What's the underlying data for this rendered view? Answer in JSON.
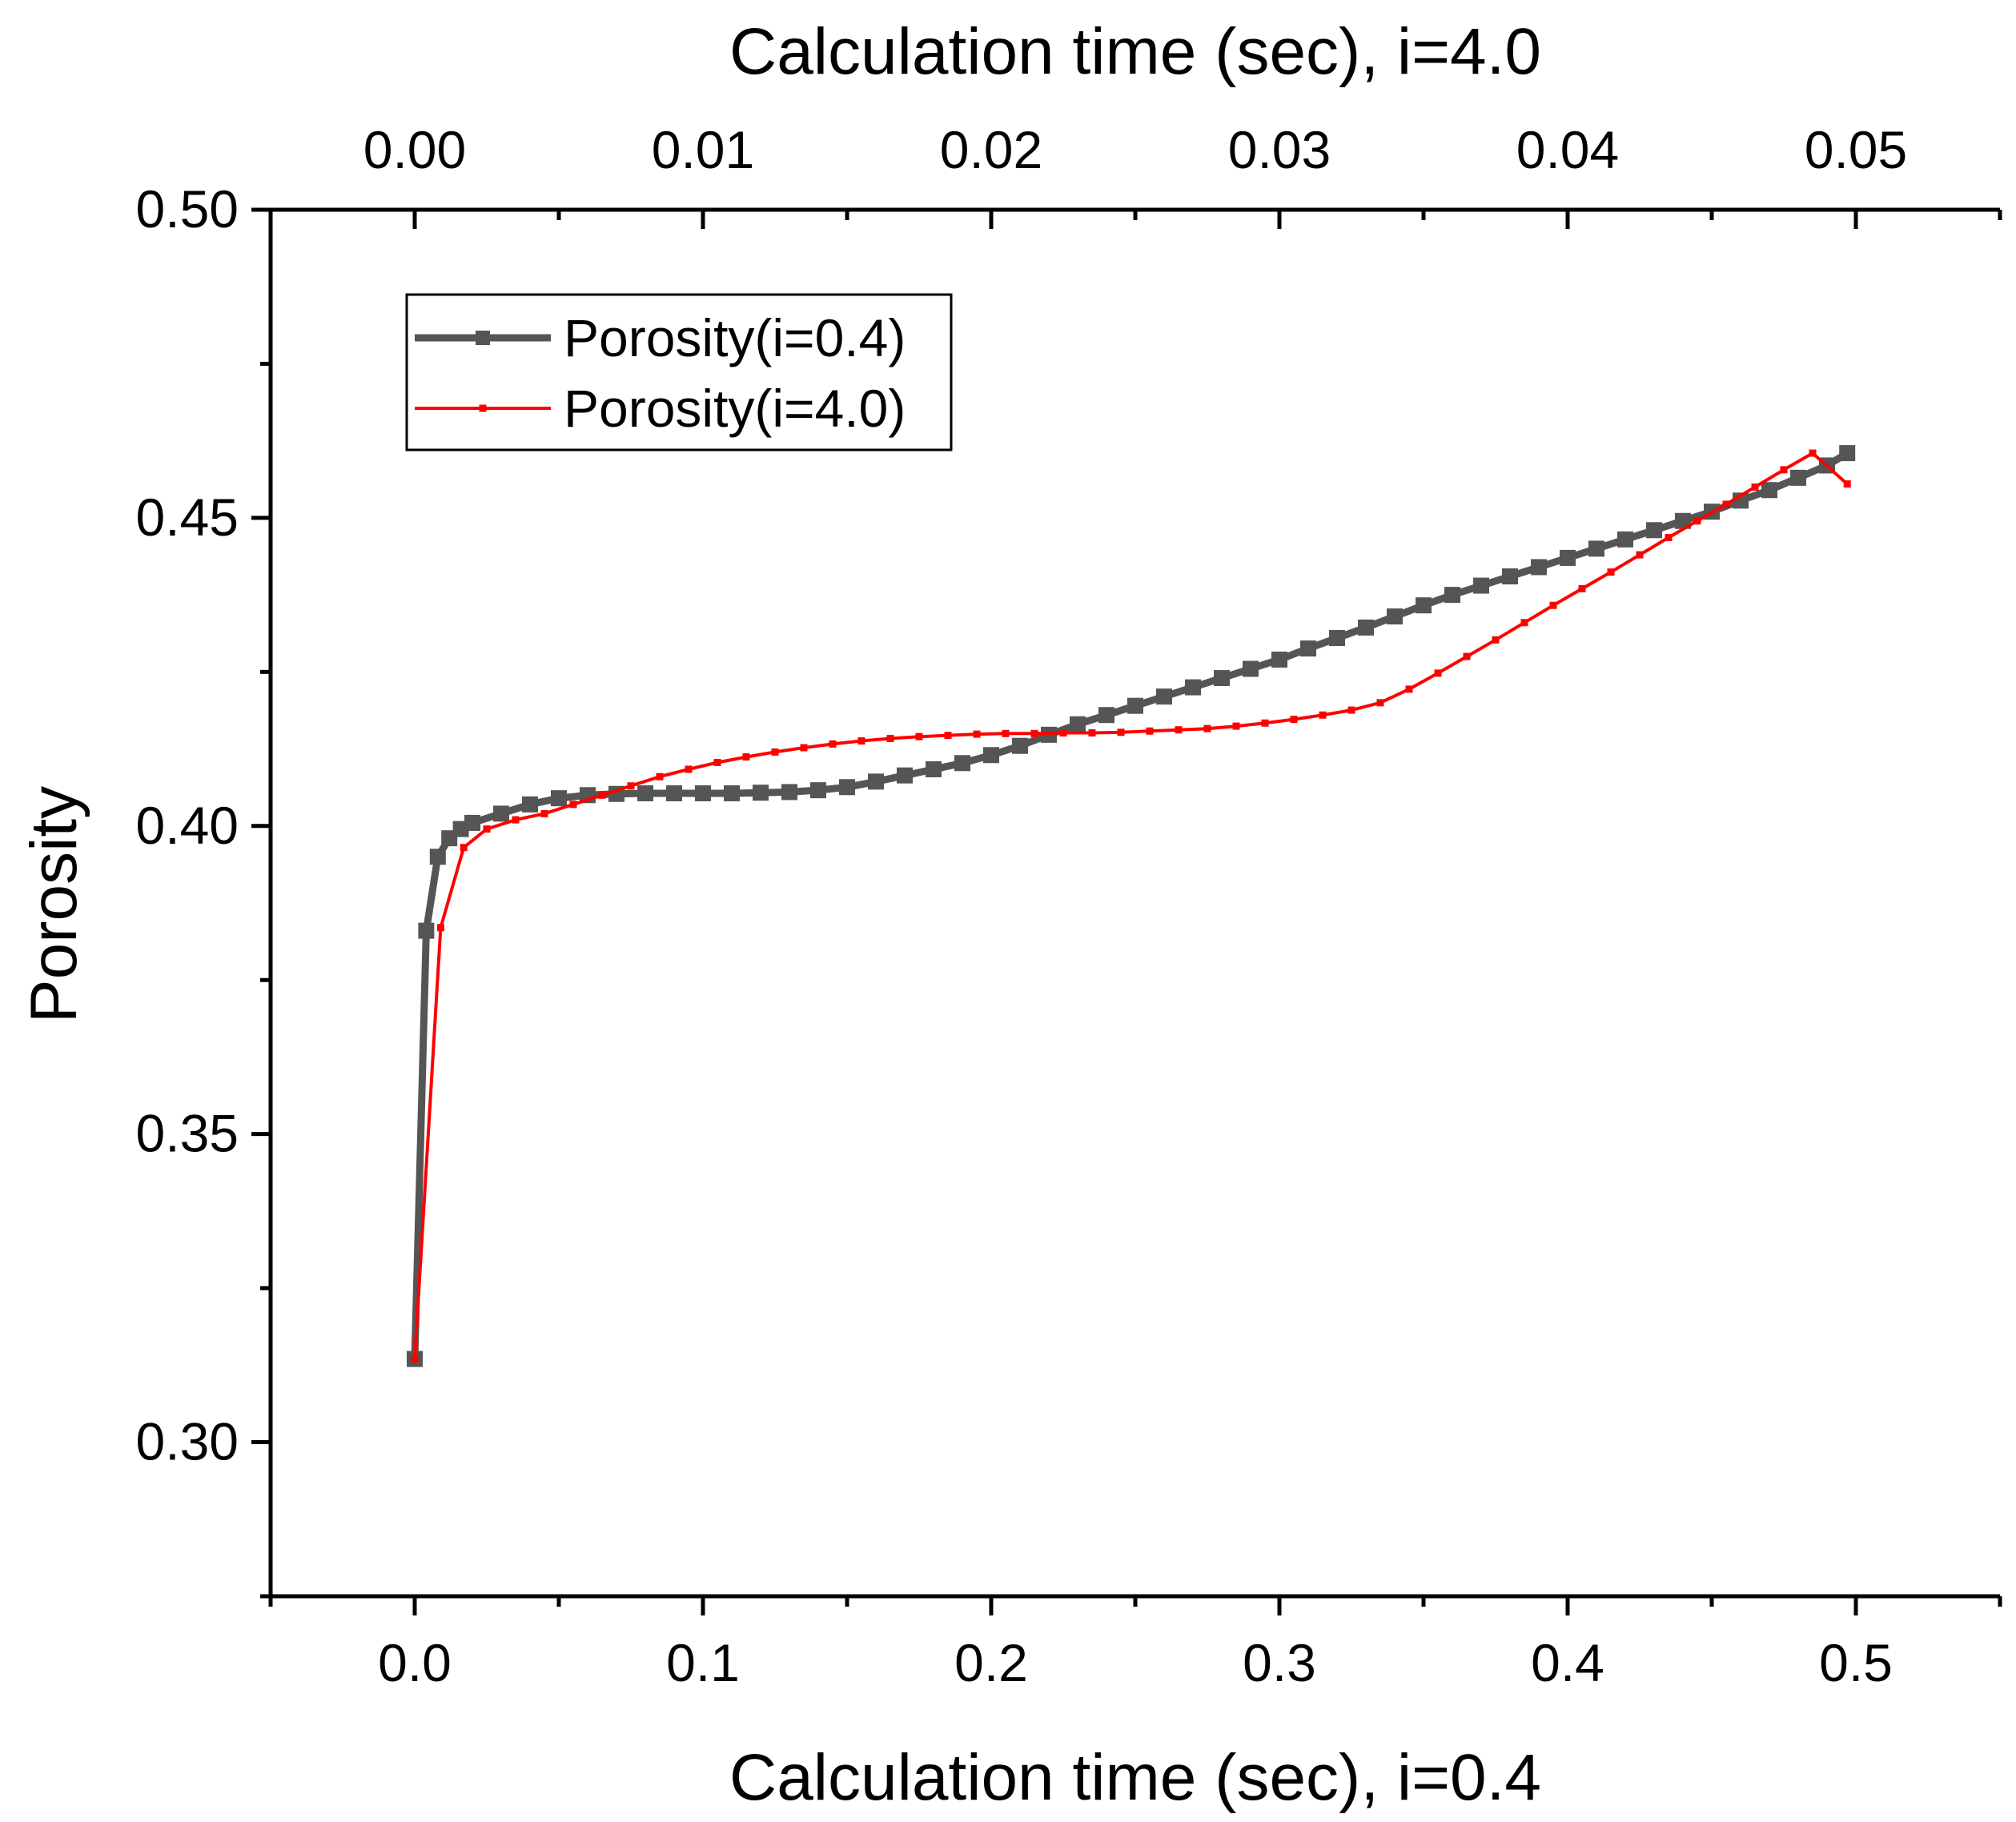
{
  "chart_data": {
    "type": "line",
    "title": "",
    "xlabel": "Calculation time (sec), i=0.4",
    "x2label": "Calculation time (sec), i=4.0",
    "ylabel": "Porosity",
    "xlim": [
      -0.05,
      0.55
    ],
    "x2lim": [
      -0.005,
      0.055
    ],
    "ylim": [
      0.275,
      0.5
    ],
    "x_ticks": [
      "0.0",
      "0.1",
      "0.2",
      "0.3",
      "0.4",
      "0.5"
    ],
    "x2_ticks": [
      "0.00",
      "0.01",
      "0.02",
      "0.03",
      "0.04",
      "0.05"
    ],
    "y_ticks": [
      "0.30",
      "0.35",
      "0.40",
      "0.45",
      "0.50"
    ],
    "legend_position": "top-left",
    "colors": {
      "series1": "#555555",
      "series2": "#ff0000",
      "axis": "#000000"
    },
    "series": [
      {
        "name": "Porosity(i=0.4)",
        "axis": "bottom",
        "color": "#555555",
        "marker": "square-large",
        "x": [
          0.0,
          0.004,
          0.008,
          0.012,
          0.016,
          0.02,
          0.03,
          0.04,
          0.05,
          0.06,
          0.07,
          0.08,
          0.09,
          0.1,
          0.11,
          0.12,
          0.13,
          0.14,
          0.15,
          0.16,
          0.17,
          0.18,
          0.19,
          0.2,
          0.21,
          0.22,
          0.23,
          0.24,
          0.25,
          0.26,
          0.27,
          0.28,
          0.29,
          0.3,
          0.31,
          0.32,
          0.33,
          0.34,
          0.35,
          0.36,
          0.37,
          0.38,
          0.39,
          0.4,
          0.41,
          0.42,
          0.43,
          0.44,
          0.45,
          0.46,
          0.47,
          0.48,
          0.49,
          0.497
        ],
        "y": [
          0.3135,
          0.383,
          0.395,
          0.398,
          0.3995,
          0.4005,
          0.402,
          0.4035,
          0.4045,
          0.405,
          0.4052,
          0.4053,
          0.4053,
          0.4053,
          0.4053,
          0.4054,
          0.4055,
          0.4058,
          0.4063,
          0.4072,
          0.4082,
          0.4092,
          0.4102,
          0.4115,
          0.413,
          0.4148,
          0.4165,
          0.418,
          0.4195,
          0.421,
          0.4225,
          0.424,
          0.4255,
          0.427,
          0.4288,
          0.4305,
          0.4322,
          0.434,
          0.4358,
          0.4375,
          0.439,
          0.4405,
          0.442,
          0.4435,
          0.445,
          0.4465,
          0.448,
          0.4495,
          0.451,
          0.4528,
          0.4545,
          0.4565,
          0.4585,
          0.4605
        ]
      },
      {
        "name": "Porosity(i=4.0)",
        "axis": "top",
        "color": "#ff0000",
        "marker": "square-small",
        "x": [
          0.0,
          0.0009,
          0.0017,
          0.0025,
          0.0035,
          0.0045,
          0.0055,
          0.0065,
          0.0075,
          0.0085,
          0.0095,
          0.0105,
          0.0115,
          0.0125,
          0.0135,
          0.0145,
          0.0155,
          0.0165,
          0.0175,
          0.0185,
          0.0195,
          0.0205,
          0.0215,
          0.0225,
          0.0235,
          0.0245,
          0.0255,
          0.0265,
          0.0275,
          0.0285,
          0.0295,
          0.0305,
          0.0315,
          0.0325,
          0.0335,
          0.0345,
          0.0355,
          0.0365,
          0.0375,
          0.0385,
          0.0395,
          0.0405,
          0.0415,
          0.0425,
          0.0435,
          0.0445,
          0.0455,
          0.0465,
          0.0475,
          0.0485,
          0.0497
        ],
        "y": [
          0.3135,
          0.3835,
          0.3965,
          0.3995,
          0.401,
          0.402,
          0.4035,
          0.405,
          0.4065,
          0.408,
          0.4092,
          0.4103,
          0.4112,
          0.412,
          0.4127,
          0.4133,
          0.4138,
          0.4142,
          0.4145,
          0.4147,
          0.4149,
          0.415,
          0.415,
          0.4151,
          0.4151,
          0.4152,
          0.4154,
          0.4156,
          0.4158,
          0.4162,
          0.4167,
          0.4173,
          0.418,
          0.4188,
          0.42,
          0.4222,
          0.4248,
          0.4275,
          0.4302,
          0.433,
          0.4358,
          0.4385,
          0.4412,
          0.444,
          0.4468,
          0.4495,
          0.4522,
          0.455,
          0.4578,
          0.4605,
          0.4555
        ]
      }
    ]
  }
}
